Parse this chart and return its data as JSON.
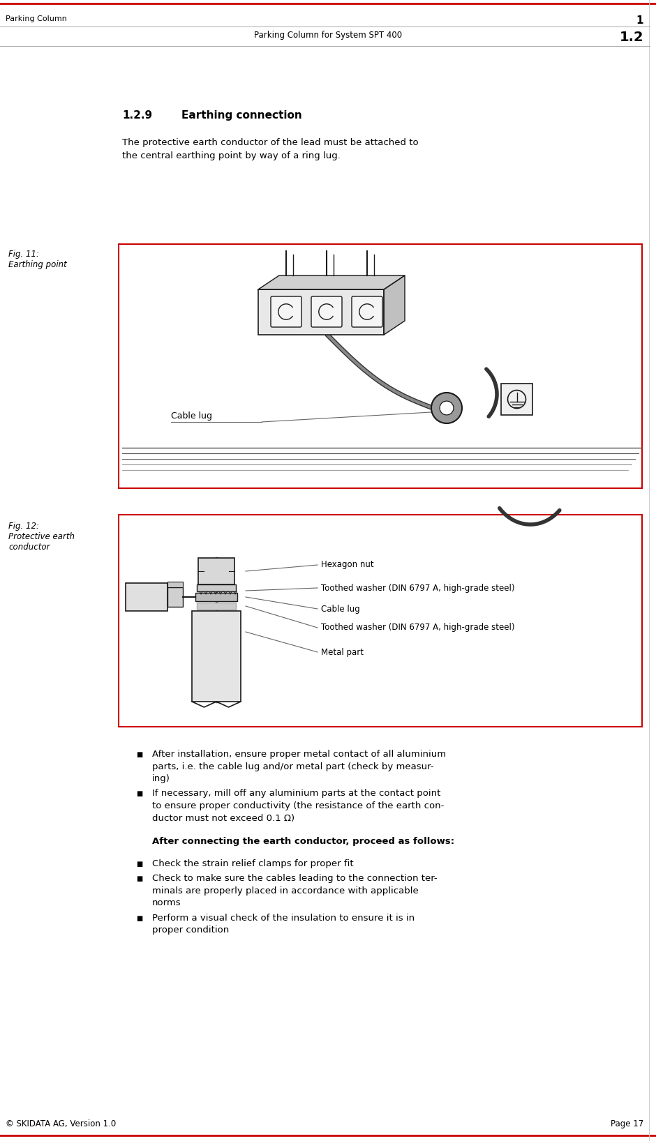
{
  "page_width": 9.4,
  "page_height": 16.36,
  "bg_color": "#ffffff",
  "red_line_color": "#cc0000",
  "gray_line_color": "#aaaaaa",
  "header_line1_left": "Parking Column",
  "header_line1_right": "1",
  "header_line2_center": "Parking Column for System SPT 400",
  "header_line2_right": "1.2",
  "footer_left": "© SKIDATA AG, Version 1.0",
  "footer_right": "Page 17",
  "section_title_num": "1.2.9",
  "section_title_text": "Earthing connection",
  "intro_line1": "The protective earth conductor of the lead must be attached to",
  "intro_line2": "the central earthing point by way of a ring lug.",
  "fig11_label_line1": "Fig. 11:",
  "fig11_label_line2": "Earthing point",
  "fig12_label_line1": "Fig. 12:",
  "fig12_label_line2": "Protective earth",
  "fig12_label_line3": "conductor",
  "fig11_caption": "Cable lug",
  "fig12_labels": [
    "Hexagon nut",
    "Toothed washer (DIN 6797 A, high-grade steel)",
    "Cable lug",
    "Toothed washer (DIN 6797 A, high-grade steel)",
    "Metal part"
  ],
  "bullet1_text1_line1": "After installation, ensure proper metal contact of all aluminium",
  "bullet1_text1_line2": "parts, i.e. the cable lug and/or metal part (check by measur-",
  "bullet1_text1_line3": "ing)",
  "bullet1_text2_line1": "If necessary, mill off any aluminium parts at the contact point",
  "bullet1_text2_line2": "to ensure proper conductivity (the resistance of the earth con-",
  "bullet1_text2_line3": "ductor must not exceed 0.1 Ω)",
  "bold_heading": "After connecting the earth conductor, proceed as follows:",
  "bullet2_text1": "Check the strain relief clamps for proper fit",
  "bullet2_text2_line1": "Check to make sure the cables leading to the connection ter-",
  "bullet2_text2_line2": "minals are properly placed in accordance with applicable",
  "bullet2_text2_line3": "norms",
  "bullet2_text3_line1": "Perform a visual check of the insulation to ensure it is in",
  "bullet2_text3_line2": "proper condition",
  "text_color": "#000000",
  "draw_color": "#1a1a1a"
}
